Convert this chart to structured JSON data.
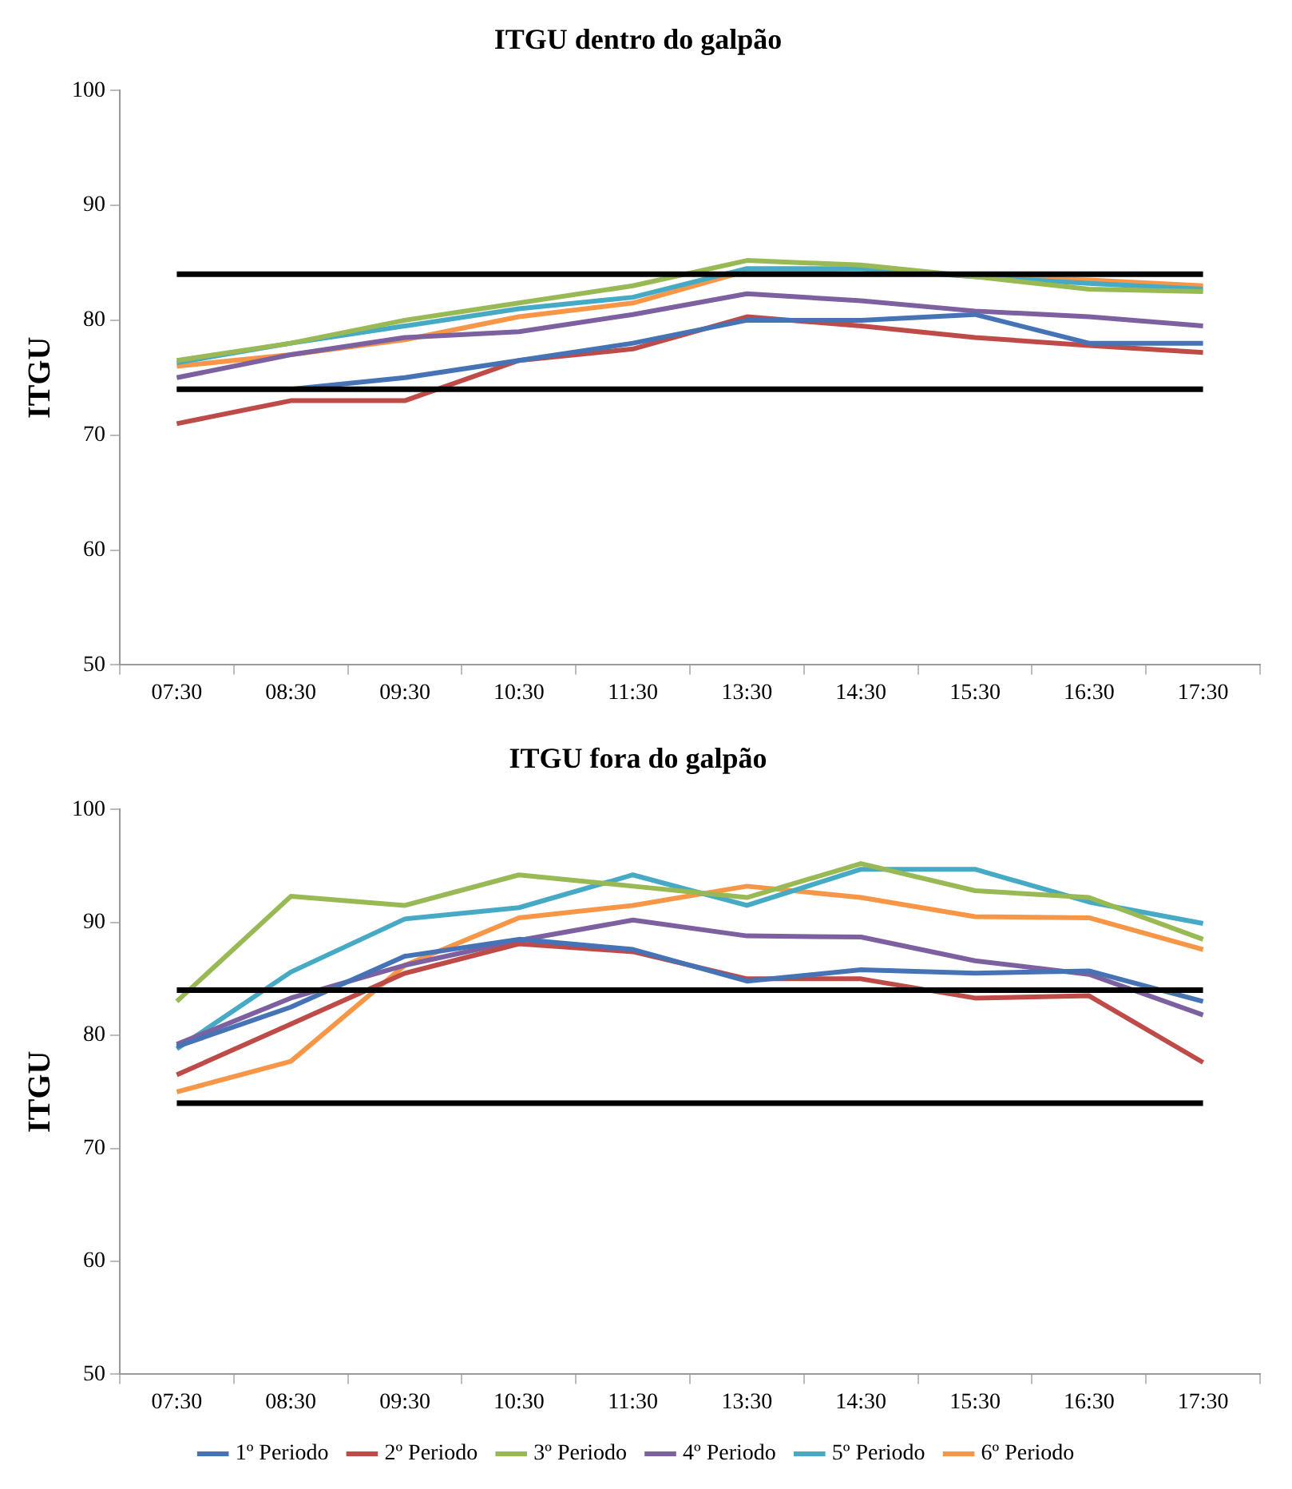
{
  "chart_data": [
    {
      "type": "line",
      "title": "ITGU dentro do galpão",
      "ylabel": "ITGU",
      "categories": [
        "07:30",
        "08:30",
        "09:30",
        "10:30",
        "11:30",
        "13:30",
        "14:30",
        "15:30",
        "16:30",
        "17:30"
      ],
      "ylim": [
        50,
        100
      ],
      "yticks": [
        50,
        60,
        70,
        80,
        90,
        100
      ],
      "grid": false,
      "legend": false,
      "marker": "none",
      "line_style": "solid",
      "ref_lines": [
        {
          "axis": "y",
          "value": 74,
          "color": "#000000"
        },
        {
          "axis": "y",
          "value": 84,
          "color": "#000000"
        }
      ],
      "series": [
        {
          "color": "#4573b5",
          "values": [
            74,
            74,
            75,
            76.5,
            78,
            80,
            80,
            80.5,
            78,
            78
          ]
        },
        {
          "color": "#be4b48",
          "values": [
            71,
            73,
            73,
            76.5,
            77.5,
            80.3,
            79.5,
            78.5,
            77.8,
            77.2
          ]
        },
        {
          "color": "#98b954",
          "values": [
            76.5,
            78,
            80,
            81.5,
            83,
            85.2,
            84.8,
            83.8,
            82.7,
            82.5
          ]
        },
        {
          "color": "#7d60a0",
          "values": [
            75,
            77,
            78.5,
            79,
            80.5,
            82.3,
            81.7,
            80.8,
            80.3,
            79.5
          ]
        },
        {
          "color": "#46aac5",
          "values": [
            76.3,
            78,
            79.5,
            81,
            82,
            84.5,
            84.5,
            83.8,
            83.2,
            82.7
          ]
        },
        {
          "color": "#f79646",
          "values": [
            76,
            77,
            78.3,
            80.3,
            81.5,
            84.3,
            84.5,
            83.8,
            83.5,
            83
          ]
        }
      ]
    },
    {
      "type": "line",
      "title": "ITGU fora do galpão",
      "ylabel": "ITGU",
      "categories": [
        "07:30",
        "08:30",
        "09:30",
        "10:30",
        "11:30",
        "13:30",
        "14:30",
        "15:30",
        "16:30",
        "17:30"
      ],
      "ylim": [
        50,
        100
      ],
      "yticks": [
        50,
        60,
        70,
        80,
        90,
        100
      ],
      "grid": false,
      "legend": "bottom",
      "marker": "none",
      "line_style": "solid",
      "ref_lines": [
        {
          "axis": "y",
          "value": 74,
          "color": "#000000"
        },
        {
          "axis": "y",
          "value": 84,
          "color": "#000000"
        }
      ],
      "series": [
        {
          "name": "1º Periodo",
          "color": "#4573b5",
          "values": [
            79,
            82.5,
            87,
            88.5,
            87.6,
            84.8,
            85.8,
            85.5,
            85.7,
            83
          ]
        },
        {
          "name": "2º Periodo",
          "color": "#be4b48",
          "values": [
            76.5,
            81,
            85.5,
            88.1,
            87.4,
            85,
            85,
            83.3,
            83.5,
            77.6
          ]
        },
        {
          "name": "3º Periodo",
          "color": "#98b954",
          "values": [
            83,
            92.3,
            91.5,
            94.2,
            93.2,
            92.2,
            95.2,
            92.8,
            92.2,
            88.5
          ]
        },
        {
          "name": "4º Periodo",
          "color": "#7d60a0",
          "values": [
            79.2,
            83.3,
            86.2,
            88.4,
            90.2,
            88.8,
            88.7,
            86.6,
            85.4,
            81.8
          ]
        },
        {
          "name": "5º Periodo",
          "color": "#46aac5",
          "values": [
            78.8,
            85.6,
            90.3,
            91.3,
            94.2,
            91.5,
            94.7,
            94.7,
            91.8,
            89.9
          ]
        },
        {
          "name": "6º Periodo",
          "color": "#f79646",
          "values": [
            75,
            77.7,
            86.2,
            90.4,
            91.5,
            93.2,
            92.2,
            90.5,
            90.4,
            87.6
          ]
        }
      ]
    }
  ]
}
